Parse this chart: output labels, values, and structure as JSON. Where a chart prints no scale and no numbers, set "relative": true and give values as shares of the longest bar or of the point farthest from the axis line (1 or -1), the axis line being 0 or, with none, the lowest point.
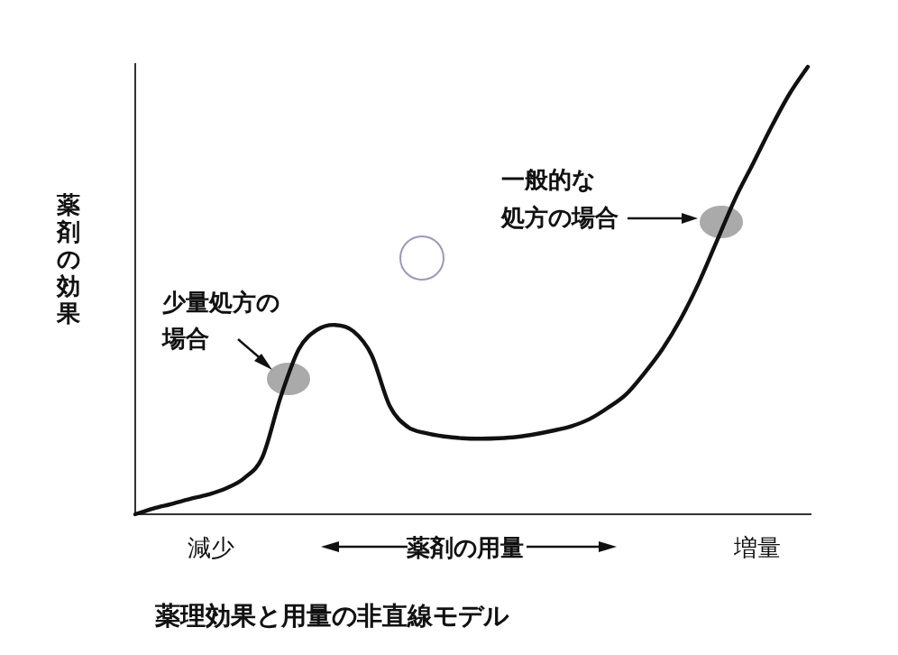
{
  "chart_data": {
    "type": "line",
    "relative": true,
    "title": "薬理効果と用量の非直線モデル",
    "xlabel": "薬剤の用量",
    "ylabel": "薬剤の効果",
    "annotations": [
      "減少",
      "増量",
      "少量処方の",
      "場合",
      "一般的な",
      "処方の場合"
    ],
    "categories": [
      null,
      null,
      null,
      null,
      null,
      null,
      null,
      null,
      null,
      null,
      null,
      null,
      null,
      null,
      null,
      null,
      null,
      null,
      null,
      null,
      null,
      null,
      null,
      null,
      null,
      null,
      null,
      null,
      null,
      null,
      null,
      null,
      null,
      null,
      null,
      null,
      null,
      null
    ],
    "series": [
      {
        "color": "#111111",
        "values": [
          0,
          0.013,
          0.023,
          0.034,
          0.044,
          0.058,
          0.081,
          0.128,
          0.262,
          0.369,
          0.412,
          0.423,
          0.409,
          0.356,
          0.242,
          0.195,
          0.181,
          0.174,
          0.17,
          0.169,
          0.17,
          0.173,
          0.179,
          0.187,
          0.197,
          0.213,
          0.238,
          0.268,
          0.315,
          0.369,
          0.436,
          0.517,
          0.611,
          0.705,
          0.785,
          0.866,
          0.94,
          1
        ]
      }
    ]
  }
}
